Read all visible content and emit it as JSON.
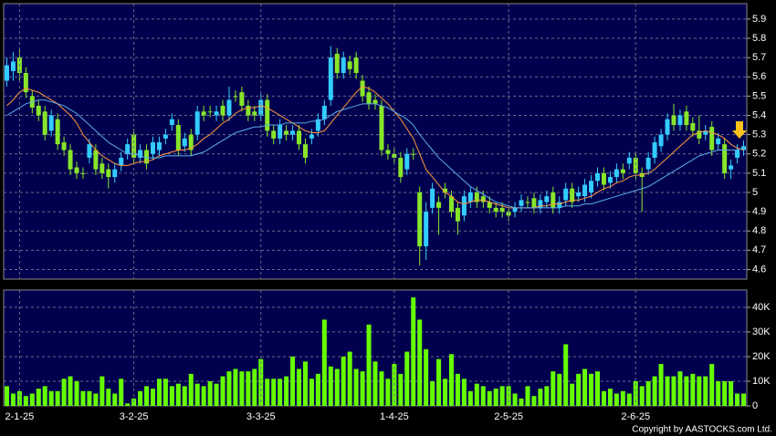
{
  "chart_data": [
    {
      "type": "candlestick",
      "open": [
        5.58,
        5.63,
        5.7,
        5.62,
        5.5,
        5.45,
        5.42,
        5.32,
        5.38,
        5.26,
        5.22,
        5.13,
        5.1,
        5.18,
        5.22,
        5.15,
        5.12,
        5.08,
        5.14,
        5.2,
        5.3,
        5.18,
        5.22,
        5.2,
        5.22,
        5.28,
        5.35,
        5.35,
        5.24,
        5.3,
        5.3,
        5.42,
        5.42,
        5.4,
        5.45,
        5.4,
        5.5,
        5.52,
        5.45,
        5.42,
        5.4,
        5.48,
        5.32,
        5.28,
        5.32,
        5.3,
        5.32,
        5.25,
        5.28,
        5.32,
        5.38,
        5.48,
        5.72,
        5.62,
        5.68,
        5.7,
        5.58,
        5.52,
        5.48,
        5.45,
        5.22,
        5.2,
        5.18,
        5.12,
        5.2,
        5.0,
        4.72,
        4.92,
        4.95,
        5.02,
        4.98,
        4.92,
        4.88,
        4.95,
        5.0,
        4.98,
        4.95,
        4.92,
        4.92,
        4.9,
        4.9,
        4.93,
        4.95,
        4.97,
        4.92,
        4.95,
        5.0,
        4.92,
        4.96,
        5.02,
        4.98,
        4.98,
        5.0,
        5.06,
        5.1,
        5.05,
        5.08,
        5.12,
        5.15,
        5.18,
        5.1,
        5.12,
        5.18,
        5.24,
        5.3,
        5.4,
        5.35,
        5.42,
        5.36,
        5.32,
        5.3,
        5.34,
        5.25,
        5.25,
        5.12,
        5.18,
        5.22
      ],
      "high": [
        5.7,
        5.73,
        5.74,
        5.65,
        5.53,
        5.48,
        5.45,
        5.43,
        5.41,
        5.29,
        5.25,
        5.16,
        5.13,
        5.28,
        5.25,
        5.18,
        5.15,
        5.15,
        5.21,
        5.28,
        5.33,
        5.25,
        5.25,
        5.29,
        5.29,
        5.33,
        5.41,
        5.38,
        5.31,
        5.33,
        5.45,
        5.45,
        5.45,
        5.45,
        5.48,
        5.55,
        5.53,
        5.55,
        5.48,
        5.45,
        5.51,
        5.51,
        5.35,
        5.38,
        5.35,
        5.35,
        5.35,
        5.28,
        5.33,
        5.41,
        5.48,
        5.76,
        5.75,
        5.73,
        5.71,
        5.73,
        5.61,
        5.55,
        5.51,
        5.48,
        5.25,
        5.23,
        5.21,
        5.23,
        5.23,
        5.03,
        4.95,
        5.05,
        4.98,
        5.05,
        5.01,
        4.95,
        5.01,
        5.03,
        5.03,
        5.01,
        4.98,
        4.95,
        4.95,
        4.93,
        4.95,
        4.99,
        4.98,
        5.0,
        4.99,
        5.01,
        5.03,
        4.98,
        5.05,
        5.05,
        5.03,
        5.07,
        5.09,
        5.13,
        5.13,
        5.11,
        5.15,
        5.15,
        5.21,
        5.21,
        5.13,
        5.21,
        5.29,
        5.33,
        5.41,
        5.46,
        5.43,
        5.45,
        5.39,
        5.4,
        5.35,
        5.37,
        5.31,
        5.28,
        5.17,
        5.25,
        5.27
      ],
      "low": [
        5.55,
        5.58,
        5.58,
        5.49,
        5.41,
        5.37,
        5.27,
        5.29,
        5.22,
        5.19,
        5.09,
        5.07,
        5.07,
        5.15,
        5.09,
        5.07,
        5.02,
        5.05,
        5.11,
        5.17,
        5.15,
        5.15,
        5.12,
        5.17,
        5.19,
        5.25,
        5.32,
        5.19,
        5.21,
        5.19,
        5.27,
        5.37,
        5.39,
        5.37,
        5.37,
        5.37,
        5.47,
        5.42,
        5.37,
        5.37,
        5.37,
        5.29,
        5.25,
        5.25,
        5.27,
        5.27,
        5.22,
        5.15,
        5.25,
        5.29,
        5.35,
        5.45,
        5.59,
        5.59,
        5.61,
        5.59,
        5.47,
        5.43,
        5.43,
        5.19,
        5.17,
        5.15,
        5.05,
        5.09,
        5.17,
        4.62,
        4.65,
        4.89,
        4.78,
        4.97,
        4.87,
        4.78,
        4.85,
        4.92,
        4.92,
        4.92,
        4.89,
        4.87,
        4.87,
        4.85,
        4.87,
        4.9,
        4.92,
        4.89,
        4.89,
        4.92,
        4.89,
        4.89,
        4.93,
        4.92,
        4.95,
        4.95,
        4.97,
        5.03,
        5.01,
        5.02,
        5.05,
        5.07,
        5.12,
        5.07,
        4.9,
        5.09,
        5.15,
        5.21,
        5.27,
        5.32,
        5.32,
        5.32,
        5.29,
        5.25,
        5.27,
        5.19,
        5.22,
        5.07,
        5.07,
        5.15,
        5.19
      ],
      "close": [
        5.66,
        5.68,
        5.62,
        5.52,
        5.44,
        5.4,
        5.3,
        5.4,
        5.25,
        5.22,
        5.12,
        5.1,
        5.1,
        5.25,
        5.12,
        5.1,
        5.08,
        5.12,
        5.18,
        5.25,
        5.18,
        5.22,
        5.15,
        5.26,
        5.26,
        5.3,
        5.38,
        5.22,
        5.28,
        5.22,
        5.42,
        5.4,
        5.42,
        5.42,
        5.4,
        5.48,
        5.5,
        5.45,
        5.4,
        5.4,
        5.48,
        5.32,
        5.28,
        5.35,
        5.3,
        5.32,
        5.25,
        5.18,
        5.3,
        5.38,
        5.45,
        5.7,
        5.62,
        5.7,
        5.64,
        5.62,
        5.5,
        5.46,
        5.46,
        5.22,
        5.2,
        5.18,
        5.08,
        5.2,
        5.2,
        4.72,
        4.9,
        5.02,
        4.92,
        5.0,
        4.9,
        4.85,
        4.98,
        5.0,
        4.95,
        4.95,
        4.92,
        4.9,
        4.9,
        4.88,
        4.92,
        4.96,
        4.95,
        4.92,
        4.96,
        4.98,
        4.92,
        4.95,
        5.02,
        4.95,
        5.0,
        5.04,
        5.06,
        5.1,
        5.04,
        5.08,
        5.12,
        5.1,
        5.18,
        5.1,
        5.08,
        5.18,
        5.26,
        5.3,
        5.38,
        5.35,
        5.4,
        5.35,
        5.32,
        5.28,
        5.32,
        5.22,
        5.28,
        5.1,
        5.14,
        5.22,
        5.24
      ],
      "up_color": "#33ccff",
      "down_color": "#88e62a",
      "lines": [
        {
          "color": "#ff9a3c",
          "values": [
            5.45,
            5.48,
            5.52,
            5.54,
            5.53,
            5.52,
            5.5,
            5.48,
            5.46,
            5.43,
            5.4,
            5.36,
            5.3,
            5.26,
            5.22,
            5.19,
            5.17,
            5.15,
            5.14,
            5.14,
            5.15,
            5.16,
            5.16,
            5.17,
            5.19,
            5.2,
            5.21,
            5.22,
            5.22,
            5.23,
            5.25,
            5.28,
            5.3,
            5.33,
            5.36,
            5.38,
            5.41,
            5.43,
            5.44,
            5.44,
            5.45,
            5.44,
            5.42,
            5.4,
            5.38,
            5.36,
            5.34,
            5.32,
            5.31,
            5.31,
            5.32,
            5.36,
            5.4,
            5.44,
            5.48,
            5.52,
            5.55,
            5.54,
            5.52,
            5.49,
            5.46,
            5.42,
            5.38,
            5.33,
            5.28,
            5.2,
            5.12,
            5.08,
            5.04,
            5.0,
            4.98,
            4.95,
            4.94,
            4.95,
            4.96,
            4.96,
            4.95,
            4.94,
            4.93,
            4.92,
            4.92,
            4.92,
            4.92,
            4.92,
            4.93,
            4.93,
            4.94,
            4.94,
            4.95,
            4.96,
            4.96,
            4.97,
            4.98,
            5.0,
            5.02,
            5.03,
            5.05,
            5.06,
            5.08,
            5.09,
            5.09,
            5.1,
            5.12,
            5.15,
            5.18,
            5.21,
            5.24,
            5.27,
            5.3,
            5.31,
            5.32,
            5.31,
            5.3,
            5.28,
            5.25,
            5.23,
            5.22
          ]
        },
        {
          "color": "#5aaee8",
          "values": [
            5.4,
            5.42,
            5.44,
            5.46,
            5.47,
            5.48,
            5.48,
            5.47,
            5.46,
            5.45,
            5.43,
            5.41,
            5.38,
            5.35,
            5.32,
            5.29,
            5.26,
            5.24,
            5.22,
            5.2,
            5.2,
            5.19,
            5.18,
            5.18,
            5.18,
            5.19,
            5.19,
            5.19,
            5.19,
            5.19,
            5.2,
            5.21,
            5.23,
            5.25,
            5.27,
            5.29,
            5.31,
            5.32,
            5.33,
            5.34,
            5.34,
            5.35,
            5.35,
            5.35,
            5.36,
            5.36,
            5.36,
            5.36,
            5.37,
            5.37,
            5.38,
            5.4,
            5.42,
            5.43,
            5.44,
            5.45,
            5.46,
            5.46,
            5.46,
            5.45,
            5.44,
            5.42,
            5.4,
            5.38,
            5.35,
            5.3,
            5.26,
            5.22,
            5.18,
            5.15,
            5.12,
            5.09,
            5.06,
            5.03,
            5.01,
            4.99,
            4.97,
            4.95,
            4.94,
            4.93,
            4.92,
            4.92,
            4.92,
            4.92,
            4.92,
            4.92,
            4.92,
            4.92,
            4.93,
            4.93,
            4.93,
            4.94,
            4.94,
            4.95,
            4.96,
            4.97,
            4.98,
            4.99,
            5.0,
            5.01,
            5.02,
            5.03,
            5.05,
            5.07,
            5.09,
            5.11,
            5.13,
            5.15,
            5.17,
            5.19,
            5.2,
            5.21,
            5.22,
            5.22,
            5.22,
            5.22,
            5.23
          ]
        }
      ],
      "ylim": [
        4.55,
        5.98
      ],
      "yticks": [
        4.6,
        4.7,
        4.8,
        4.9,
        5,
        5.1,
        5.2,
        5.3,
        5.4,
        5.5,
        5.6,
        5.7,
        5.8,
        5.9
      ],
      "grid": true
    },
    {
      "type": "bar",
      "categories": [
        null,
        null,
        "2-1-25",
        null,
        null,
        null,
        null,
        null,
        null,
        null,
        null,
        null,
        null,
        null,
        null,
        null,
        null,
        null,
        null,
        null,
        "3-2-25",
        null,
        null,
        null,
        null,
        null,
        null,
        null,
        null,
        null,
        null,
        null,
        null,
        null,
        null,
        null,
        null,
        null,
        null,
        null,
        "3-3-25",
        null,
        null,
        null,
        null,
        null,
        null,
        null,
        null,
        null,
        null,
        null,
        null,
        null,
        null,
        null,
        null,
        null,
        null,
        null,
        null,
        "1-4-25",
        null,
        null,
        null,
        null,
        null,
        null,
        null,
        null,
        null,
        null,
        null,
        null,
        null,
        null,
        null,
        null,
        null,
        "2-5-25",
        null,
        null,
        null,
        null,
        null,
        null,
        null,
        null,
        null,
        null,
        null,
        null,
        null,
        null,
        null,
        null,
        null,
        null,
        null,
        "2-6-25",
        null,
        null,
        null,
        null,
        null,
        null,
        null,
        null,
        null,
        null,
        null,
        null,
        null,
        null,
        null,
        null,
        null
      ],
      "values": [
        8000,
        5000,
        6000,
        4000,
        5000,
        7000,
        8000,
        6000,
        6000,
        11000,
        12000,
        10000,
        6000,
        6000,
        5000,
        12000,
        7000,
        5000,
        11000,
        1000,
        3000,
        6000,
        8000,
        7000,
        11000,
        11000,
        8000,
        9000,
        8000,
        13000,
        9000,
        8000,
        10000,
        9000,
        12000,
        14000,
        15000,
        14000,
        14000,
        15000,
        19000,
        11000,
        11000,
        11000,
        12000,
        20000,
        15000,
        18000,
        11000,
        13000,
        35000,
        16000,
        15000,
        20000,
        22000,
        15000,
        14000,
        33000,
        18000,
        14000,
        11000,
        17000,
        13000,
        22000,
        44000,
        35000,
        23000,
        10000,
        19000,
        11000,
        21000,
        13000,
        11000,
        6000,
        9000,
        8000,
        6000,
        7000,
        8000,
        8000,
        5000,
        3000,
        8000,
        4000,
        7000,
        8000,
        14000,
        13000,
        25000,
        9000,
        13000,
        15000,
        13000,
        14000,
        6000,
        7000,
        5000,
        6000,
        5000,
        10000,
        8000,
        10000,
        12000,
        17000,
        12000,
        12000,
        14000,
        12000,
        13000,
        12000,
        12000,
        17000,
        10000,
        10000,
        10000,
        5000,
        5000
      ],
      "color": "#66ff00",
      "ylim": [
        0,
        47000
      ],
      "yticks": [
        0,
        {
          "value": 10000,
          "label": "10K"
        },
        {
          "value": 20000,
          "label": "20K"
        },
        {
          "value": 30000,
          "label": "30K"
        },
        {
          "value": 40000,
          "label": "40K"
        }
      ],
      "grid": true,
      "copyright": "Copyright by AASTOCKS.com Ltd."
    }
  ]
}
